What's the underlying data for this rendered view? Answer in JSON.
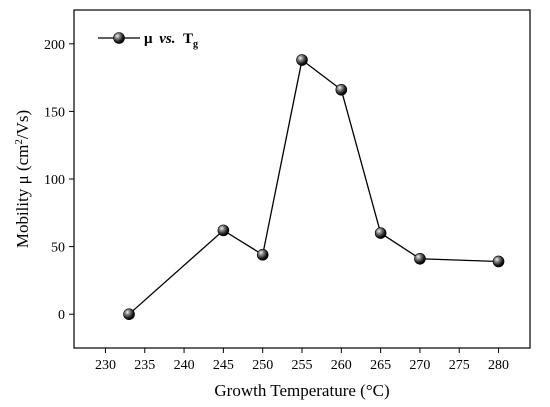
{
  "chart_data": {
    "type": "line",
    "title": "",
    "x": [
      233,
      245,
      250,
      255,
      260,
      265,
      270,
      280
    ],
    "series": [
      {
        "name": "μ vs. T_g",
        "values": [
          0,
          62,
          44,
          188,
          166,
          60,
          41,
          39
        ]
      }
    ],
    "xlabel": "Growth Temperature (°C)",
    "ylabel": "Mobility μ (cm²/Vs)",
    "xlim": [
      226,
      284
    ],
    "ylim": [
      -25,
      225
    ],
    "xticks": [
      230,
      235,
      240,
      245,
      250,
      255,
      260,
      265,
      270,
      275,
      280
    ],
    "yticks": [
      0,
      50,
      100,
      150,
      200
    ],
    "grid": false,
    "legend_position": "top-left",
    "marker": "sphere",
    "line_color": "#000000",
    "marker_color": "#1a1a1a"
  },
  "legend": {
    "mu": "μ",
    "vs": "vs.",
    "t": "T",
    "sub": "g"
  },
  "axes": {
    "ylabel_main": "Mobility μ (cm",
    "ylabel_sup": "2",
    "ylabel_end": "/Vs)",
    "xlabel": "Growth Temperature (°C)"
  }
}
